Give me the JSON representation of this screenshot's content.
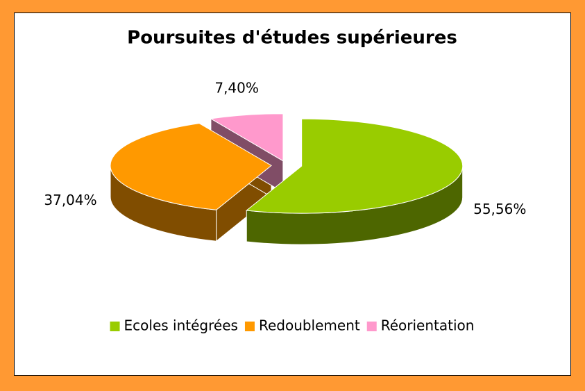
{
  "chart_data": {
    "type": "pie",
    "title": "Poursuites d'études supérieures",
    "categories": [
      "Ecoles intégrées",
      "Redoublement",
      "Réorientation"
    ],
    "values": [
      55.56,
      37.04,
      7.4
    ],
    "value_labels": [
      "55,56%",
      "37,04%",
      "7,40%"
    ],
    "colors": [
      "#99cc00",
      "#ff9900",
      "#ff99cc"
    ],
    "legend": "bottom"
  }
}
